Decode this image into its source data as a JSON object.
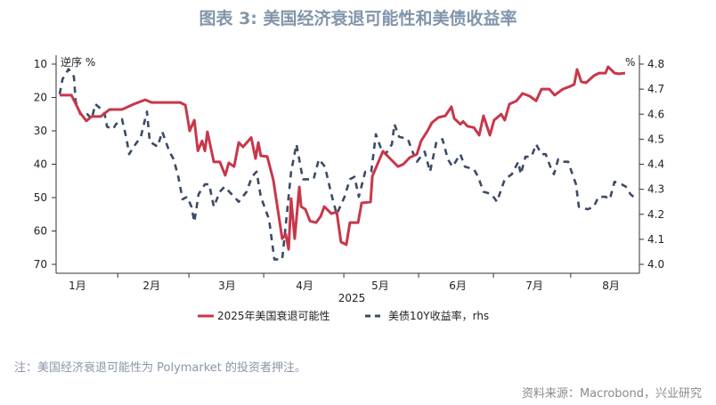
{
  "title": "图表 3:  美国经济衰退可能性和美债收益率",
  "note": "注：美国经济衰退可能性为 Polymarket 的投资者押注。",
  "source": "资料来源：Macrobond，兴业研究",
  "chart_data": {
    "type": "line",
    "x_unit": "trading-day index since 2025-01-01",
    "xlabel": "2025",
    "xlim": [
      -0.5,
      163.3
    ],
    "month_boundaries": [
      16.8,
      36.8,
      57.8,
      80.3,
      101.3,
      122.3,
      144
    ],
    "month_labels": [
      {
        "label": "1月",
        "x": 5.5
      },
      {
        "label": "2月",
        "x": 26.3
      },
      {
        "label": "3月",
        "x": 47.5
      },
      {
        "label": "4月",
        "x": 69.3
      },
      {
        "label": "5月",
        "x": 90.5
      },
      {
        "label": "6月",
        "x": 112.3
      },
      {
        "label": "7月",
        "x": 133.8
      },
      {
        "label": "8月",
        "x": 155.3
      }
    ],
    "left_axis": {
      "label": "逆序 %",
      "reversed": true,
      "ylim": [
        10,
        70
      ],
      "ticks": [
        "10",
        "20",
        "30",
        "40",
        "50",
        "60",
        "70"
      ]
    },
    "right_axis": {
      "label": "%",
      "ylim": [
        4.0,
        4.8
      ],
      "ticks": [
        "4.0",
        "4.1",
        "4.2",
        "4.3",
        "4.4",
        "4.5",
        "4.6",
        "4.7",
        "4.8"
      ]
    },
    "series": [
      {
        "name": "2025年美国衰退可能性",
        "axis": "left",
        "color": "#c8374a",
        "style": "solid",
        "points": [
          [
            0.5,
            19.3
          ],
          [
            3.8,
            19.3
          ],
          [
            6.3,
            24.7
          ],
          [
            8,
            27
          ],
          [
            9.5,
            25.7
          ],
          [
            12,
            25.7
          ],
          [
            14.5,
            23.6
          ],
          [
            18,
            23.6
          ],
          [
            21.3,
            22
          ],
          [
            24.5,
            20.7
          ],
          [
            26.3,
            21.5
          ],
          [
            34.3,
            21.5
          ],
          [
            35.8,
            22.3
          ],
          [
            37,
            30
          ],
          [
            38.3,
            26.8
          ],
          [
            39.3,
            36
          ],
          [
            40.5,
            33
          ],
          [
            41.3,
            36
          ],
          [
            42,
            30.3
          ],
          [
            43.8,
            39.3
          ],
          [
            45.5,
            39.3
          ],
          [
            47,
            43.3
          ],
          [
            48,
            39.6
          ],
          [
            49.5,
            40.7
          ],
          [
            50.8,
            33.5
          ],
          [
            52,
            34.8
          ],
          [
            54.3,
            32
          ],
          [
            55.5,
            38.3
          ],
          [
            56.3,
            33.5
          ],
          [
            57,
            37.5
          ],
          [
            58.8,
            37.7
          ],
          [
            60.5,
            44.7
          ],
          [
            63,
            62.3
          ],
          [
            64,
            61
          ],
          [
            64.8,
            65.5
          ],
          [
            65.5,
            50.3
          ],
          [
            66.5,
            62.3
          ],
          [
            67.8,
            46.8
          ],
          [
            68.3,
            52.7
          ],
          [
            69.5,
            53.5
          ],
          [
            70.8,
            57
          ],
          [
            72.5,
            57.5
          ],
          [
            73.8,
            55.6
          ],
          [
            74.8,
            52.7
          ],
          [
            76.8,
            54.8
          ],
          [
            78.3,
            54.3
          ],
          [
            79.5,
            63.3
          ],
          [
            81,
            64.1
          ],
          [
            82,
            57.5
          ],
          [
            84.3,
            57.5
          ],
          [
            85.3,
            51.6
          ],
          [
            87.8,
            51.3
          ],
          [
            88.3,
            43.6
          ],
          [
            90,
            39.3
          ],
          [
            91.3,
            36.1
          ],
          [
            93,
            38
          ],
          [
            95.5,
            40.7
          ],
          [
            97,
            40
          ],
          [
            98.8,
            38
          ],
          [
            100.8,
            37
          ],
          [
            102,
            33
          ],
          [
            103.8,
            30
          ],
          [
            105,
            27.6
          ],
          [
            106.8,
            26
          ],
          [
            108.8,
            25.5
          ],
          [
            110.5,
            22.8
          ],
          [
            111.3,
            26.3
          ],
          [
            113,
            28
          ],
          [
            113.8,
            27.2
          ],
          [
            115,
            28.6
          ],
          [
            116.8,
            29
          ],
          [
            118.3,
            31.3
          ],
          [
            119.5,
            25.5
          ],
          [
            121.3,
            31.3
          ],
          [
            122.5,
            26.8
          ],
          [
            124.5,
            25
          ],
          [
            125.5,
            26.8
          ],
          [
            126.8,
            22
          ],
          [
            128.8,
            21
          ],
          [
            130.5,
            18.8
          ],
          [
            132.5,
            19.6
          ],
          [
            134.3,
            21
          ],
          [
            135.8,
            17.5
          ],
          [
            138,
            17.5
          ],
          [
            139.5,
            19.3
          ],
          [
            141.8,
            17.5
          ],
          [
            143.8,
            16.7
          ],
          [
            145,
            16.1
          ],
          [
            145.8,
            11.6
          ],
          [
            147,
            15.3
          ],
          [
            148.3,
            15.6
          ],
          [
            150.5,
            13.5
          ],
          [
            152,
            12.7
          ],
          [
            153.8,
            12.7
          ],
          [
            154.5,
            10.8
          ],
          [
            156.3,
            12.7
          ],
          [
            157.5,
            12.9
          ],
          [
            159.3,
            12.7
          ]
        ]
      },
      {
        "name": "美债10Y收益率，rhs",
        "axis": "right",
        "color": "#3c4a66",
        "style": "dashed",
        "points": [
          [
            0.5,
            4.68
          ],
          [
            1.3,
            4.74
          ],
          [
            3,
            4.78
          ],
          [
            4.5,
            4.75
          ],
          [
            5,
            4.65
          ],
          [
            6.3,
            4.6
          ],
          [
            8.3,
            4.6
          ],
          [
            9.5,
            4.58
          ],
          [
            10.5,
            4.64
          ],
          [
            13,
            4.61
          ],
          [
            13.8,
            4.55
          ],
          [
            15.5,
            4.54
          ],
          [
            16.3,
            4.56
          ],
          [
            18,
            4.58
          ],
          [
            19.3,
            4.5
          ],
          [
            20,
            4.44
          ],
          [
            21.3,
            4.47
          ],
          [
            23.3,
            4.51
          ],
          [
            25,
            4.61
          ],
          [
            25.8,
            4.49
          ],
          [
            28,
            4.47
          ],
          [
            29.3,
            4.53
          ],
          [
            31.3,
            4.45
          ],
          [
            32.5,
            4.42
          ],
          [
            33.8,
            4.35
          ],
          [
            35,
            4.26
          ],
          [
            36.3,
            4.27
          ],
          [
            37.5,
            4.23
          ],
          [
            38.3,
            4.17
          ],
          [
            39.5,
            4.28
          ],
          [
            41.3,
            4.32
          ],
          [
            42.5,
            4.32
          ],
          [
            43.8,
            4.23
          ],
          [
            45.5,
            4.29
          ],
          [
            46.8,
            4.31
          ],
          [
            49.5,
            4.27
          ],
          [
            50.8,
            4.25
          ],
          [
            53,
            4.29
          ],
          [
            54.5,
            4.35
          ],
          [
            55.8,
            4.37
          ],
          [
            57,
            4.27
          ],
          [
            59.3,
            4.18
          ],
          [
            60.8,
            4.02
          ],
          [
            63,
            4.02
          ],
          [
            64.3,
            4.2
          ],
          [
            65.5,
            4.37
          ],
          [
            67,
            4.48
          ],
          [
            68.8,
            4.34
          ],
          [
            70,
            4.34
          ],
          [
            71.8,
            4.34
          ],
          [
            73.3,
            4.42
          ],
          [
            75,
            4.39
          ],
          [
            76.8,
            4.28
          ],
          [
            78.3,
            4.2
          ],
          [
            80.5,
            4.27
          ],
          [
            82,
            4.34
          ],
          [
            83.3,
            4.35
          ],
          [
            84.5,
            4.27
          ],
          [
            86.3,
            4.37
          ],
          [
            88,
            4.37
          ],
          [
            89.3,
            4.52
          ],
          [
            90.8,
            4.46
          ],
          [
            92,
            4.44
          ],
          [
            93.8,
            4.48
          ],
          [
            94.5,
            4.56
          ],
          [
            95.8,
            4.51
          ],
          [
            98.3,
            4.5
          ],
          [
            99.3,
            4.46
          ],
          [
            100.8,
            4.41
          ],
          [
            103,
            4.45
          ],
          [
            104.5,
            4.37
          ],
          [
            106.3,
            4.49
          ],
          [
            108,
            4.5
          ],
          [
            109.5,
            4.42
          ],
          [
            110.8,
            4.39
          ],
          [
            113,
            4.44
          ],
          [
            114.3,
            4.39
          ],
          [
            116.8,
            4.38
          ],
          [
            118,
            4.35
          ],
          [
            119.5,
            4.29
          ],
          [
            121.8,
            4.28
          ],
          [
            123.3,
            4.25
          ],
          [
            125.5,
            4.34
          ],
          [
            127.5,
            4.36
          ],
          [
            129.3,
            4.41
          ],
          [
            130,
            4.36
          ],
          [
            131.3,
            4.43
          ],
          [
            133,
            4.43
          ],
          [
            134.3,
            4.48
          ],
          [
            135.8,
            4.44
          ],
          [
            137,
            4.44
          ],
          [
            138.3,
            4.39
          ],
          [
            139.3,
            4.36
          ],
          [
            140.5,
            4.42
          ],
          [
            141.8,
            4.41
          ],
          [
            143.3,
            4.41
          ],
          [
            144.5,
            4.36
          ],
          [
            145.5,
            4.32
          ],
          [
            146.3,
            4.23
          ],
          [
            148.8,
            4.22
          ],
          [
            150.5,
            4.23
          ],
          [
            151.8,
            4.27
          ],
          [
            153.8,
            4.27
          ],
          [
            155,
            4.26
          ],
          [
            156.3,
            4.33
          ],
          [
            158.3,
            4.32
          ],
          [
            159.5,
            4.31
          ],
          [
            160.8,
            4.28
          ],
          [
            162.5,
            4.26
          ]
        ]
      }
    ],
    "legend": {
      "position": "bottom",
      "entries": [
        "2025年美国衰退可能性",
        "美债10Y收益率，rhs"
      ]
    }
  }
}
